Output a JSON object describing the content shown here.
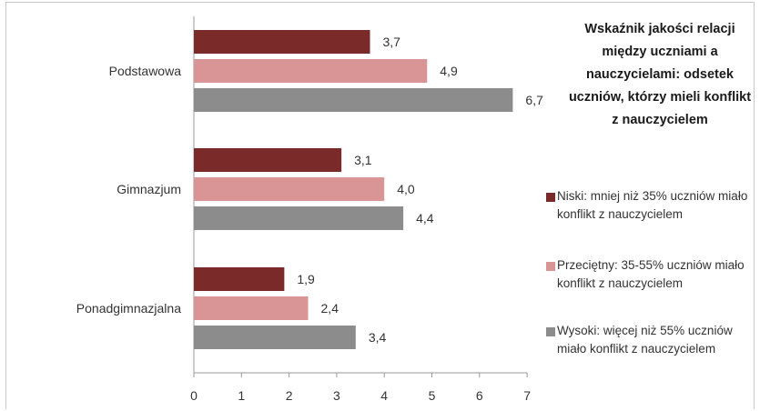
{
  "chart_data": {
    "type": "bar",
    "orientation": "horizontal",
    "title": "Wskaźnik jakości relacji między uczniami a nauczycielami: odsetek uczniów, którzy mieli konflikt z nauczycielem",
    "categories": [
      "Podstawowa",
      "Gimnazjum",
      "Ponadgimnazjalna"
    ],
    "series": [
      {
        "name": "Niski: mniej niż 35% uczniów miało konflikt z nauczycielem",
        "color": "#7b2a2a",
        "values": [
          3.7,
          3.1,
          1.9
        ],
        "labels": [
          "3,7",
          "3,1",
          "1,9"
        ]
      },
      {
        "name": "Przeciętny: 35-55% uczniów miało konflikt z nauczycielem",
        "color": "#d99595",
        "values": [
          4.9,
          4.0,
          2.4
        ],
        "labels": [
          "4,9",
          "4,0",
          "2,4"
        ]
      },
      {
        "name": "Wysoki: więcej niż 55% uczniów miało konflikt z nauczycielem",
        "color": "#8c8c8c",
        "values": [
          6.7,
          4.4,
          3.4
        ],
        "labels": [
          "6,7",
          "4,4",
          "3,4"
        ]
      }
    ],
    "xlim": [
      0,
      7
    ],
    "xticks": [
      "0",
      "1",
      "2",
      "3",
      "4",
      "5",
      "6",
      "7"
    ],
    "xlabel": "",
    "ylabel": "",
    "grid": false,
    "legend_position": "right"
  }
}
